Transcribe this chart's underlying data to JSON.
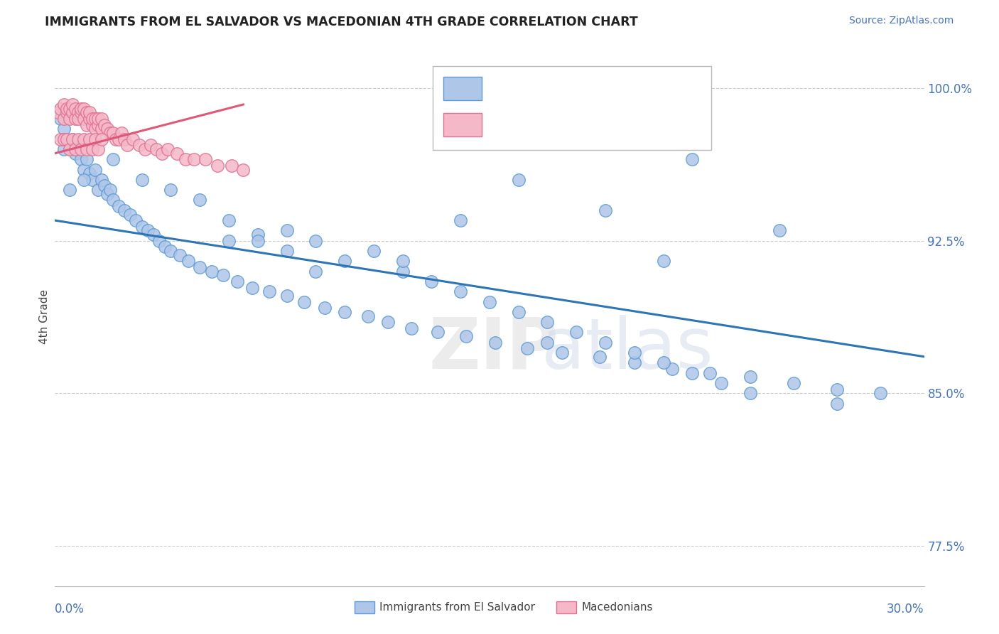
{
  "title": "IMMIGRANTS FROM EL SALVADOR VS MACEDONIAN 4TH GRADE CORRELATION CHART",
  "source": "Source: ZipAtlas.com",
  "ylabel": "4th Grade",
  "xmin": 0.0,
  "xmax": 0.3,
  "ymin": 75.5,
  "ymax": 102.0,
  "blue_color": "#aec6e8",
  "blue_edge": "#5b9bd5",
  "blue_line": "#2e75b6",
  "pink_color": "#f4b8c8",
  "pink_edge": "#e07090",
  "pink_line": "#e05878",
  "blue_trend_x0": 0.0,
  "blue_trend_y0": 93.5,
  "blue_trend_x1": 0.3,
  "blue_trend_y1": 86.8,
  "pink_trend_x0": 0.0,
  "pink_trend_y0": 96.8,
  "pink_trend_x1": 0.065,
  "pink_trend_y1": 99.2,
  "blue_scatter_x": [
    0.002,
    0.003,
    0.004,
    0.005,
    0.006,
    0.007,
    0.008,
    0.009,
    0.01,
    0.011,
    0.012,
    0.013,
    0.014,
    0.015,
    0.016,
    0.017,
    0.018,
    0.019,
    0.02,
    0.022,
    0.024,
    0.026,
    0.028,
    0.03,
    0.032,
    0.034,
    0.036,
    0.038,
    0.04,
    0.043,
    0.046,
    0.05,
    0.054,
    0.058,
    0.063,
    0.068,
    0.074,
    0.08,
    0.086,
    0.093,
    0.1,
    0.108,
    0.115,
    0.123,
    0.132,
    0.142,
    0.152,
    0.163,
    0.175,
    0.188,
    0.2,
    0.213,
    0.226,
    0.24,
    0.255,
    0.27,
    0.285,
    0.06,
    0.07,
    0.08,
    0.09,
    0.1,
    0.11,
    0.12,
    0.13,
    0.14,
    0.15,
    0.16,
    0.17,
    0.18,
    0.19,
    0.2,
    0.21,
    0.22,
    0.23,
    0.24,
    0.16,
    0.22,
    0.25,
    0.27,
    0.21,
    0.19,
    0.17,
    0.14,
    0.12,
    0.09,
    0.08,
    0.07,
    0.06,
    0.05,
    0.04,
    0.03,
    0.02,
    0.01,
    0.005,
    0.003
  ],
  "blue_scatter_y": [
    98.5,
    98.0,
    97.5,
    97.0,
    97.5,
    96.8,
    97.0,
    96.5,
    96.0,
    96.5,
    95.8,
    95.5,
    96.0,
    95.0,
    95.5,
    95.2,
    94.8,
    95.0,
    94.5,
    94.2,
    94.0,
    93.8,
    93.5,
    93.2,
    93.0,
    92.8,
    92.5,
    92.2,
    92.0,
    91.8,
    91.5,
    91.2,
    91.0,
    90.8,
    90.5,
    90.2,
    90.0,
    89.8,
    89.5,
    89.2,
    89.0,
    88.8,
    88.5,
    88.2,
    88.0,
    87.8,
    87.5,
    87.2,
    87.0,
    86.8,
    86.5,
    86.2,
    86.0,
    85.8,
    85.5,
    85.2,
    85.0,
    93.5,
    92.8,
    92.0,
    92.5,
    91.5,
    92.0,
    91.0,
    90.5,
    90.0,
    89.5,
    89.0,
    88.5,
    88.0,
    87.5,
    87.0,
    86.5,
    86.0,
    85.5,
    85.0,
    95.5,
    96.5,
    93.0,
    84.5,
    91.5,
    94.0,
    87.5,
    93.5,
    91.5,
    91.0,
    93.0,
    92.5,
    92.5,
    94.5,
    95.0,
    95.5,
    96.5,
    95.5,
    95.0,
    97.0
  ],
  "pink_scatter_x": [
    0.001,
    0.002,
    0.003,
    0.003,
    0.004,
    0.004,
    0.005,
    0.005,
    0.006,
    0.006,
    0.007,
    0.007,
    0.008,
    0.008,
    0.009,
    0.009,
    0.01,
    0.01,
    0.011,
    0.011,
    0.012,
    0.012,
    0.013,
    0.013,
    0.014,
    0.014,
    0.015,
    0.015,
    0.016,
    0.016,
    0.017,
    0.018,
    0.019,
    0.02,
    0.021,
    0.022,
    0.023,
    0.024,
    0.025,
    0.027,
    0.029,
    0.031,
    0.033,
    0.035,
    0.037,
    0.039,
    0.042,
    0.045,
    0.048,
    0.052,
    0.056,
    0.061,
    0.065,
    0.002,
    0.003,
    0.004,
    0.005,
    0.006,
    0.007,
    0.008,
    0.009,
    0.01,
    0.011,
    0.012,
    0.013,
    0.014,
    0.015,
    0.016
  ],
  "pink_scatter_y": [
    98.8,
    99.0,
    98.5,
    99.2,
    98.8,
    99.0,
    98.5,
    99.0,
    98.8,
    99.2,
    98.5,
    99.0,
    98.8,
    98.5,
    98.8,
    99.0,
    98.5,
    99.0,
    98.2,
    98.8,
    98.5,
    98.8,
    98.2,
    98.5,
    98.0,
    98.5,
    98.2,
    98.5,
    98.0,
    98.5,
    98.2,
    98.0,
    97.8,
    97.8,
    97.5,
    97.5,
    97.8,
    97.5,
    97.2,
    97.5,
    97.2,
    97.0,
    97.2,
    97.0,
    96.8,
    97.0,
    96.8,
    96.5,
    96.5,
    96.5,
    96.2,
    96.2,
    96.0,
    97.5,
    97.5,
    97.5,
    97.0,
    97.5,
    97.0,
    97.5,
    97.0,
    97.5,
    97.0,
    97.5,
    97.0,
    97.5,
    97.0,
    97.5
  ]
}
